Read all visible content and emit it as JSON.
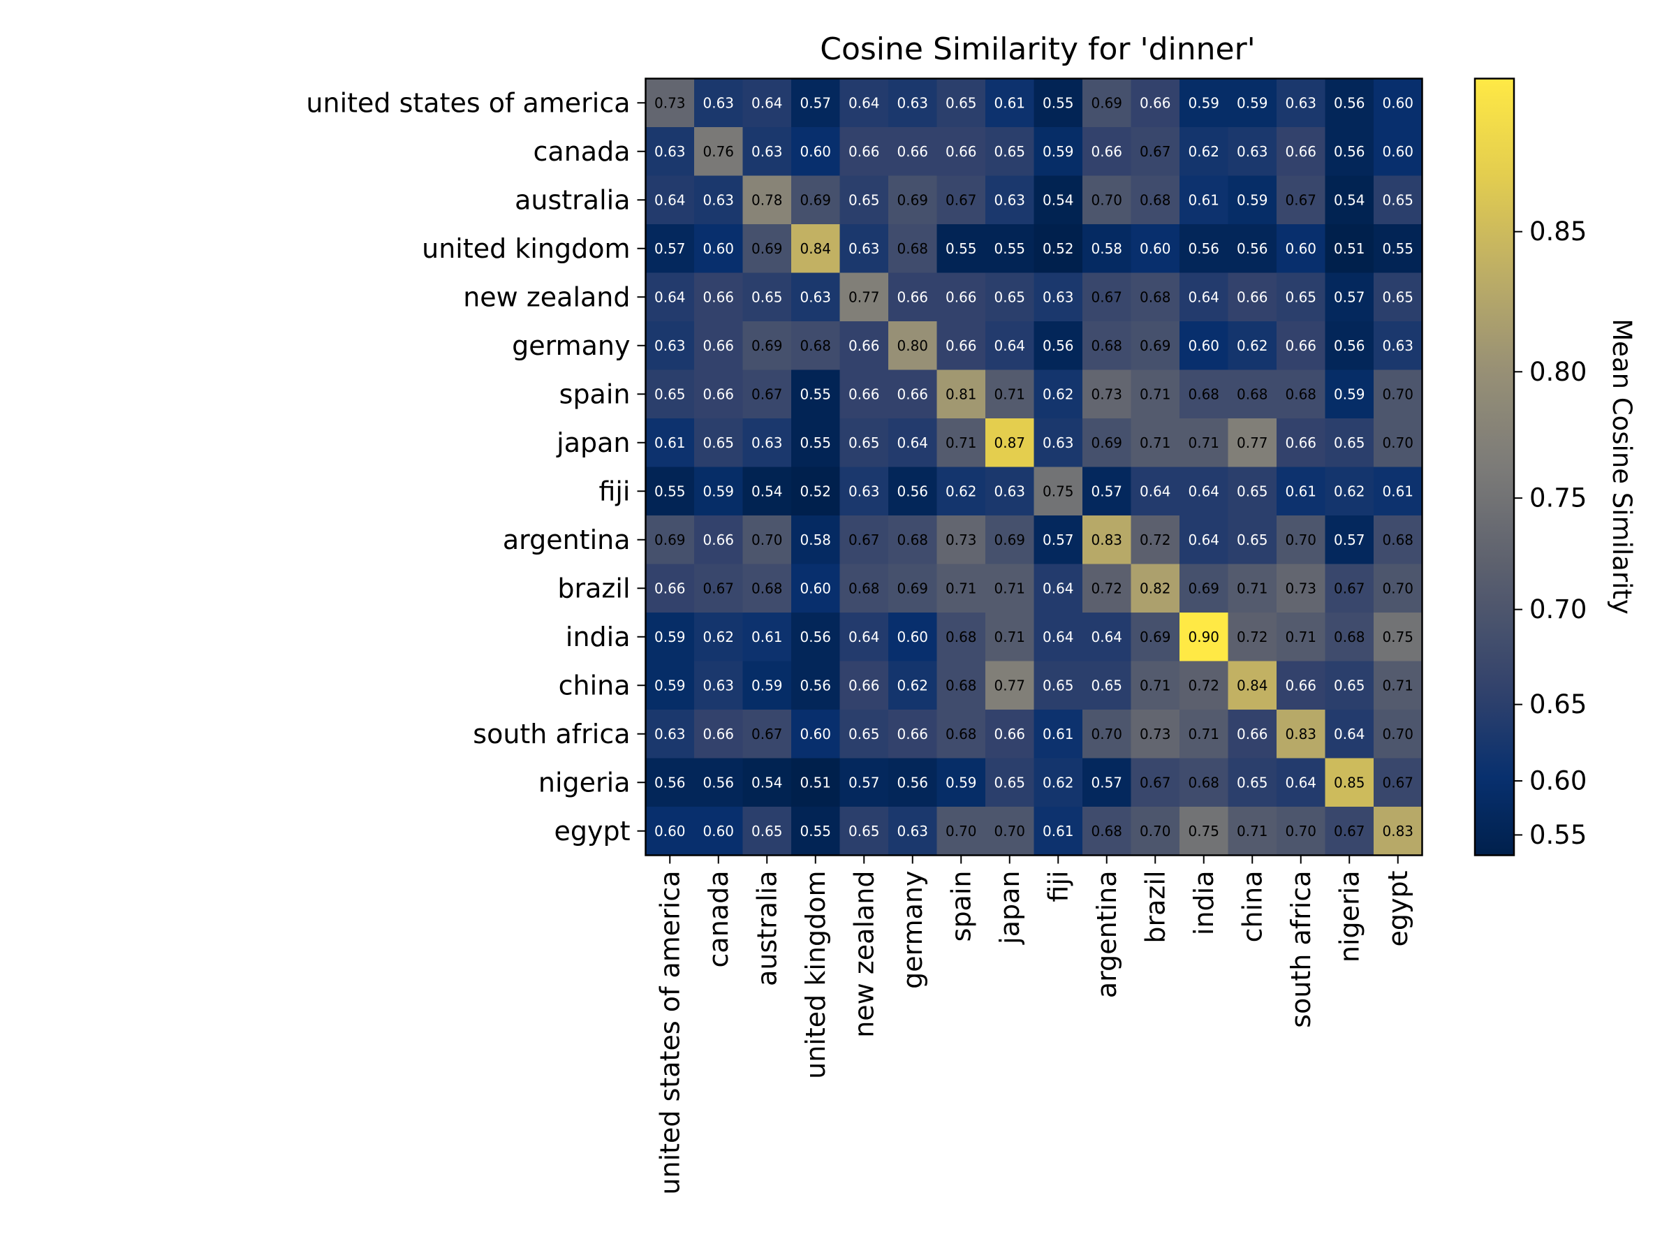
{
  "chart_data": {
    "type": "heatmap",
    "title": "Cosine Similarity for 'dinner'",
    "row_labels": [
      "united states of america",
      "canada",
      "australia",
      "united kingdom",
      "new zealand",
      "germany",
      "spain",
      "japan",
      "fiji",
      "argentina",
      "brazil",
      "india",
      "china",
      "south africa",
      "nigeria",
      "egypt"
    ],
    "col_labels": [
      "united states of america",
      "canada",
      "australia",
      "united kingdom",
      "new zealand",
      "germany",
      "spain",
      "japan",
      "fiji",
      "argentina",
      "brazil",
      "india",
      "china",
      "south africa",
      "nigeria",
      "egypt"
    ],
    "values": [
      [
        "0.73",
        "0.63",
        "0.64",
        "0.57",
        "0.64",
        "0.63",
        "0.65",
        "0.61",
        "0.55",
        "0.69",
        "0.66",
        "0.59",
        "0.59",
        "0.63",
        "0.56",
        "0.60"
      ],
      [
        "0.63",
        "0.76",
        "0.63",
        "0.60",
        "0.66",
        "0.66",
        "0.66",
        "0.65",
        "0.59",
        "0.66",
        "0.67",
        "0.62",
        "0.63",
        "0.66",
        "0.56",
        "0.60"
      ],
      [
        "0.64",
        "0.63",
        "0.78",
        "0.69",
        "0.65",
        "0.69",
        "0.67",
        "0.63",
        "0.54",
        "0.70",
        "0.68",
        "0.61",
        "0.59",
        "0.67",
        "0.54",
        "0.65"
      ],
      [
        "0.57",
        "0.60",
        "0.69",
        "0.84",
        "0.63",
        "0.68",
        "0.55",
        "0.55",
        "0.52",
        "0.58",
        "0.60",
        "0.56",
        "0.56",
        "0.60",
        "0.51",
        "0.55"
      ],
      [
        "0.64",
        "0.66",
        "0.65",
        "0.63",
        "0.77",
        "0.66",
        "0.66",
        "0.65",
        "0.63",
        "0.67",
        "0.68",
        "0.64",
        "0.66",
        "0.65",
        "0.57",
        "0.65"
      ],
      [
        "0.63",
        "0.66",
        "0.69",
        "0.68",
        "0.66",
        "0.80",
        "0.66",
        "0.64",
        "0.56",
        "0.68",
        "0.69",
        "0.60",
        "0.62",
        "0.66",
        "0.56",
        "0.63"
      ],
      [
        "0.65",
        "0.66",
        "0.67",
        "0.55",
        "0.66",
        "0.66",
        "0.81",
        "0.71",
        "0.62",
        "0.73",
        "0.71",
        "0.68",
        "0.68",
        "0.68",
        "0.59",
        "0.70"
      ],
      [
        "0.61",
        "0.65",
        "0.63",
        "0.55",
        "0.65",
        "0.64",
        "0.71",
        "0.87",
        "0.63",
        "0.69",
        "0.71",
        "0.71",
        "0.77",
        "0.66",
        "0.65",
        "0.70"
      ],
      [
        "0.55",
        "0.59",
        "0.54",
        "0.52",
        "0.63",
        "0.56",
        "0.62",
        "0.63",
        "0.75",
        "0.57",
        "0.64",
        "0.64",
        "0.65",
        "0.61",
        "0.62",
        "0.61"
      ],
      [
        "0.69",
        "0.66",
        "0.70",
        "0.58",
        "0.67",
        "0.68",
        "0.73",
        "0.69",
        "0.57",
        "0.83",
        "0.72",
        "0.64",
        "0.65",
        "0.70",
        "0.57",
        "0.68"
      ],
      [
        "0.66",
        "0.67",
        "0.68",
        "0.60",
        "0.68",
        "0.69",
        "0.71",
        "0.71",
        "0.64",
        "0.72",
        "0.82",
        "0.69",
        "0.71",
        "0.73",
        "0.67",
        "0.70"
      ],
      [
        "0.59",
        "0.62",
        "0.61",
        "0.56",
        "0.64",
        "0.60",
        "0.68",
        "0.71",
        "0.64",
        "0.64",
        "0.69",
        "0.90",
        "0.72",
        "0.71",
        "0.68",
        "0.75"
      ],
      [
        "0.59",
        "0.63",
        "0.59",
        "0.56",
        "0.66",
        "0.62",
        "0.68",
        "0.77",
        "0.65",
        "0.65",
        "0.71",
        "0.72",
        "0.84",
        "0.66",
        "0.65",
        "0.71"
      ],
      [
        "0.63",
        "0.66",
        "0.67",
        "0.60",
        "0.65",
        "0.66",
        "0.68",
        "0.66",
        "0.61",
        "0.70",
        "0.73",
        "0.71",
        "0.66",
        "0.83",
        "0.64",
        "0.70"
      ],
      [
        "0.56",
        "0.56",
        "0.54",
        "0.51",
        "0.57",
        "0.56",
        "0.59",
        "0.65",
        "0.62",
        "0.57",
        "0.67",
        "0.68",
        "0.65",
        "0.64",
        "0.85",
        "0.67"
      ],
      [
        "0.60",
        "0.60",
        "0.65",
        "0.55",
        "0.65",
        "0.63",
        "0.70",
        "0.70",
        "0.61",
        "0.68",
        "0.70",
        "0.75",
        "0.71",
        "0.70",
        "0.67",
        "0.83"
      ]
    ],
    "colorbar": {
      "label": "Mean Cosine Similarity",
      "range": [
        0.51,
        0.9
      ],
      "ticks": [
        "0.55",
        "0.60",
        "0.65",
        "0.70",
        "0.75",
        "0.80",
        "0.85"
      ],
      "colormap": "cividis",
      "scale": "nonlinear"
    },
    "grid": false,
    "colors": {
      "low": "#00204c",
      "mid": "#7c7b78",
      "high": "#ffe945",
      "dark_text": "#000000",
      "light_text": "#ffffff"
    }
  }
}
